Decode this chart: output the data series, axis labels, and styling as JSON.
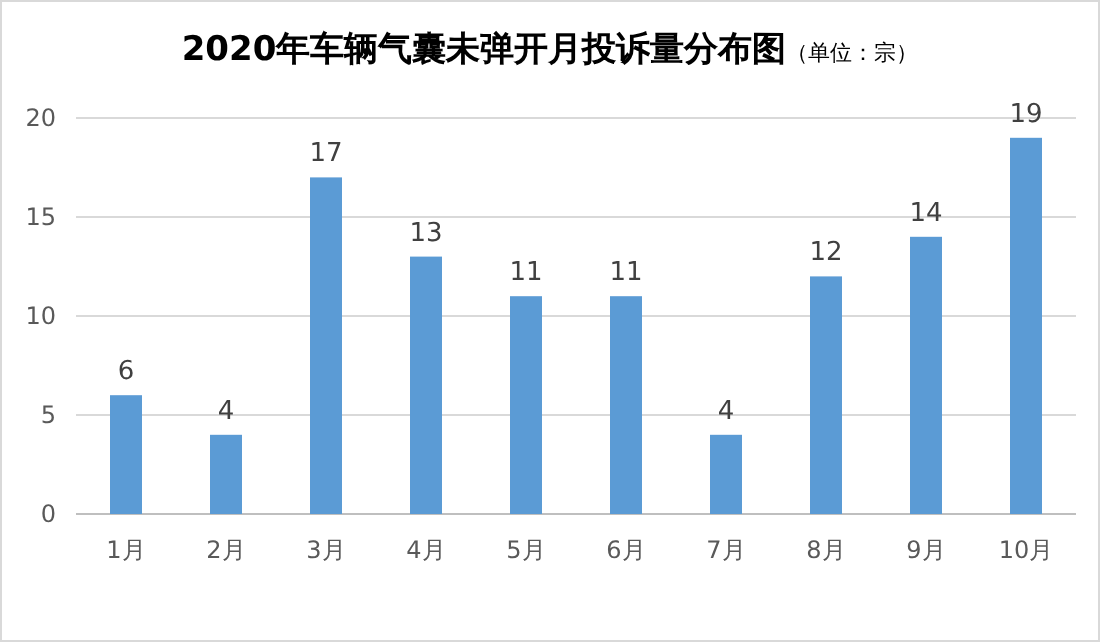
{
  "chart_data": {
    "type": "bar",
    "title": "2020年车辆气囊未弹开月投诉量分布图",
    "subtitle": "（单位：宗）",
    "categories": [
      "1月",
      "2月",
      "3月",
      "4月",
      "5月",
      "6月",
      "7月",
      "8月",
      "9月",
      "10月"
    ],
    "values": [
      6,
      4,
      17,
      13,
      11,
      11,
      4,
      12,
      14,
      19
    ],
    "color": "#5b9bd5",
    "ylim": [
      0,
      20
    ],
    "yticks": [
      0,
      5,
      10,
      15,
      20
    ],
    "grid": "y",
    "data_labels": true
  }
}
